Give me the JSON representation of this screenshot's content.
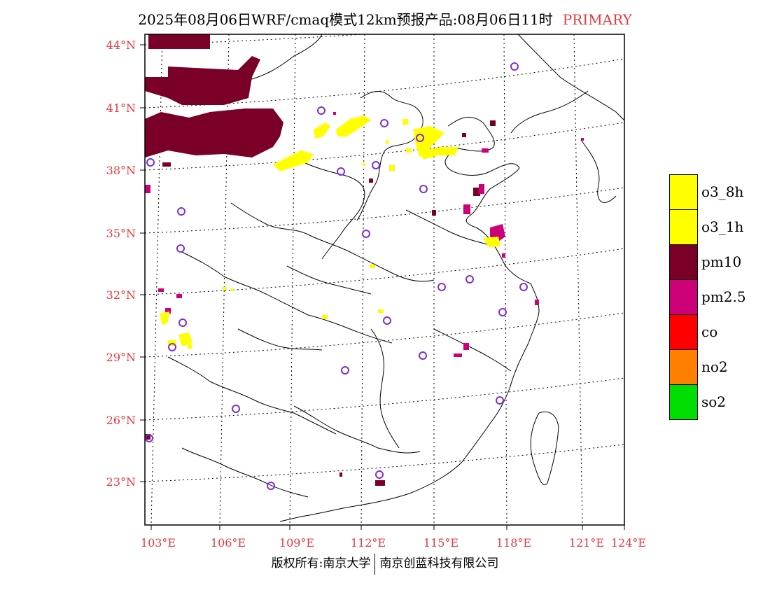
{
  "title": {
    "main": "2025年08月06日WRF/cmaq模式12km预报产品:08月06日11时",
    "tag": "PRIMARY"
  },
  "colors": {
    "o3_8h": "#ffff00",
    "o3_1h": "#ffff00",
    "pm10": "#7a0028",
    "pm2_5": "#cc0077",
    "co": "#ff0000",
    "no2": "#ff7f00",
    "so2": "#00dd00",
    "station": "#7b2fd6",
    "tick": "#e8383c"
  },
  "lat_labels": [
    "44°N",
    "41°N",
    "38°N",
    "35°N",
    "32°N",
    "29°N",
    "26°N",
    "23°N"
  ],
  "lon_labels": [
    "103°E",
    "106°E",
    "109°E",
    "112°E",
    "115°E",
    "118°E",
    "121°E",
    "124°E"
  ],
  "legend": [
    {
      "label": "o3_8h",
      "color": "#ffff00"
    },
    {
      "label": "o3_1h",
      "color": "#ffff00"
    },
    {
      "label": "pm10",
      "color": "#7a0028"
    },
    {
      "label": "pm2.5",
      "color": "#cc0077"
    },
    {
      "label": "co",
      "color": "#ff0000"
    },
    {
      "label": "no2",
      "color": "#ff7f00"
    },
    {
      "label": "so2",
      "color": "#00dd00"
    }
  ],
  "copyright": {
    "left": "版权所有:南京大学",
    "right": "南京创蓝科技有限公司"
  }
}
